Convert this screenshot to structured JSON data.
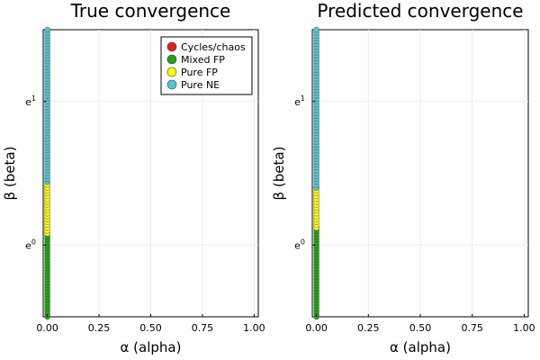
{
  "chart_data": [
    {
      "type": "scatter",
      "title": "True convergence",
      "xlabel": "α (alpha)",
      "ylabel": "β (beta)",
      "xlim": [
        -0.02,
        1.02
      ],
      "ylim_log": [
        -0.5,
        1.5
      ],
      "y_scale": "log (base e)",
      "xticks": [
        0.0,
        0.25,
        0.5,
        0.75,
        1.0
      ],
      "xtick_labels": [
        "0.00",
        "0.25",
        "0.50",
        "0.75",
        "1.00"
      ],
      "yticks_log": [
        0,
        1
      ],
      "ytick_labels": [
        {
          "base": "e",
          "exp": "0"
        },
        {
          "base": "e",
          "exp": "1"
        }
      ],
      "grid": true,
      "legend_position": "top-right",
      "series": [
        {
          "name": "Cycles/chaos",
          "color": "#e0251b",
          "x": 0.0,
          "log_beta_ranges": []
        },
        {
          "name": "Mixed FP",
          "color": "#22a612",
          "x": 0.0,
          "log_beta_ranges": [
            [
              -0.5,
              0.08
            ]
          ]
        },
        {
          "name": "Pure FP",
          "color": "#ffff00",
          "x": 0.0,
          "log_beta_ranges": [
            [
              0.08,
              0.44
            ]
          ]
        },
        {
          "name": "Pure NE",
          "color": "#4fc8d6",
          "x": 0.0,
          "log_beta_ranges": [
            [
              0.44,
              1.5
            ]
          ]
        }
      ]
    },
    {
      "type": "scatter",
      "title": "Predicted convergence",
      "xlabel": "α (alpha)",
      "ylabel": "β (beta)",
      "xlim": [
        -0.02,
        1.02
      ],
      "ylim_log": [
        -0.5,
        1.5
      ],
      "y_scale": "log (base e)",
      "xticks": [
        0.0,
        0.25,
        0.5,
        0.75,
        1.0
      ],
      "xtick_labels": [
        "0.00",
        "0.25",
        "0.50",
        "0.75",
        "1.00"
      ],
      "yticks_log": [
        0,
        1
      ],
      "ytick_labels": [
        {
          "base": "e",
          "exp": "0"
        },
        {
          "base": "e",
          "exp": "1"
        }
      ],
      "grid": true,
      "series": [
        {
          "name": "Mixed FP",
          "color": "#22a612",
          "x": 0.0,
          "log_beta_ranges": [
            [
              -0.5,
              0.12
            ]
          ]
        },
        {
          "name": "Pure FP",
          "color": "#ffff00",
          "x": 0.0,
          "log_beta_ranges": [
            [
              0.12,
              0.4
            ]
          ]
        },
        {
          "name": "Pure NE",
          "color": "#4fc8d6",
          "x": 0.0,
          "log_beta_ranges": [
            [
              0.4,
              1.5
            ]
          ]
        }
      ]
    }
  ]
}
